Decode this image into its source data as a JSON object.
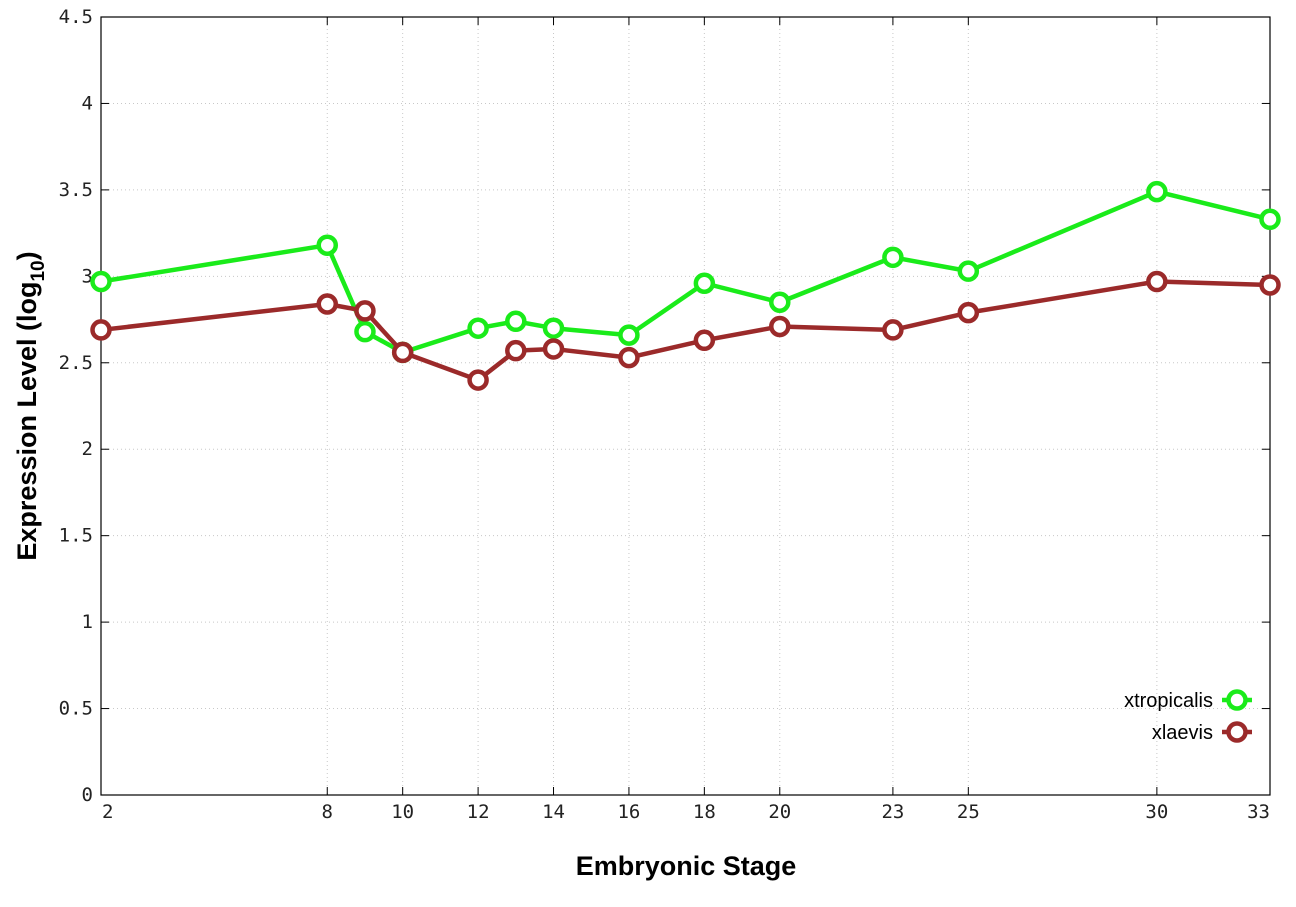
{
  "chart_data": {
    "type": "line",
    "xlabel": "Embryonic Stage",
    "ylabel_main": "Expression Level (log",
    "ylabel_sub": "10",
    "ylabel_close": ")",
    "xlim": [
      2,
      33
    ],
    "ylim": [
      0,
      4.5
    ],
    "x_ticks": [
      2,
      8,
      10,
      12,
      14,
      16,
      18,
      20,
      23,
      25,
      30,
      33
    ],
    "y_ticks": [
      {
        "value": 0,
        "label": "0"
      },
      {
        "value": 0.5,
        "label": "0.5"
      },
      {
        "value": 1,
        "label": "1"
      },
      {
        "value": 1.5,
        "label": "1.5"
      },
      {
        "value": 2,
        "label": "2"
      },
      {
        "value": 2.5,
        "label": "2.5"
      },
      {
        "value": 3,
        "label": "3"
      },
      {
        "value": 3.5,
        "label": "3.5"
      },
      {
        "value": 4,
        "label": "4"
      },
      {
        "value": 4.5,
        "label": "4.5"
      }
    ],
    "grid": true,
    "legend_position": "bottom-right",
    "series": [
      {
        "name": "xtropicalis",
        "color": "#1aeb1a",
        "x": [
          2,
          8,
          9,
          10,
          12,
          13,
          14,
          16,
          18,
          20,
          23,
          25,
          30,
          33
        ],
        "y": [
          2.97,
          3.18,
          2.68,
          2.56,
          2.7,
          2.74,
          2.7,
          2.66,
          2.96,
          2.85,
          3.11,
          3.03,
          3.49,
          3.33
        ]
      },
      {
        "name": "xlaevis",
        "color": "#9b2a2a",
        "x": [
          2,
          8,
          9,
          10,
          12,
          13,
          14,
          16,
          18,
          20,
          23,
          25,
          30,
          33
        ],
        "y": [
          2.69,
          2.84,
          2.8,
          2.56,
          2.4,
          2.57,
          2.58,
          2.53,
          2.63,
          2.71,
          2.69,
          2.79,
          2.97,
          2.95
        ]
      }
    ]
  }
}
